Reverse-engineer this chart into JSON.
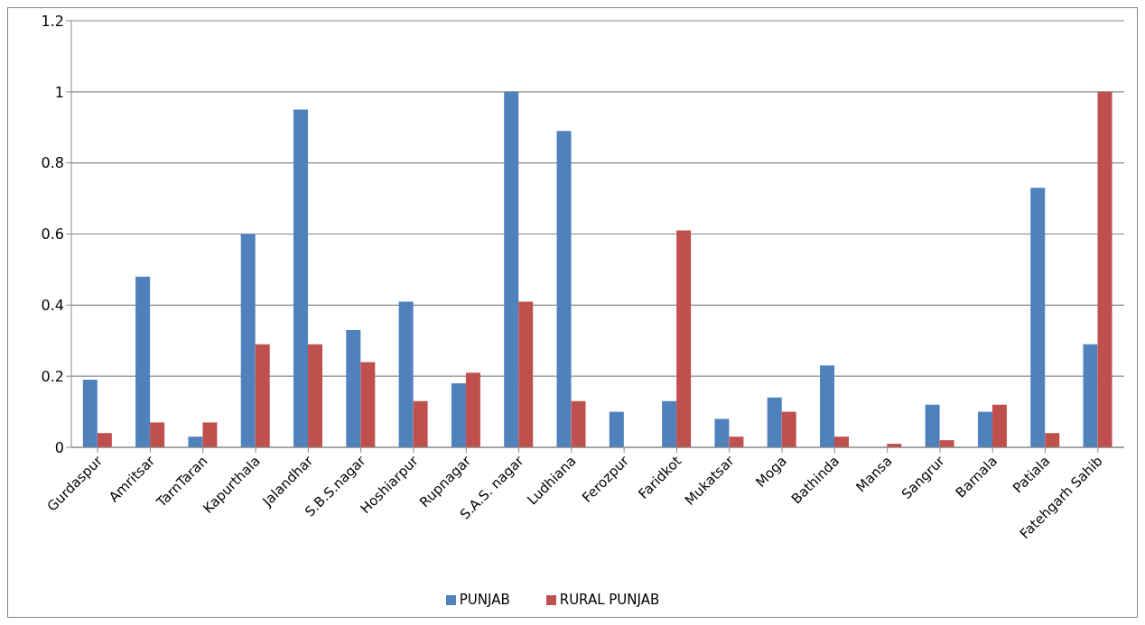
{
  "chart_data": {
    "type": "bar",
    "categories": [
      "Gurdaspur",
      "Amritsar",
      "TarnTaran",
      "Kapurthala",
      "Jalandhar",
      "S.B.S.nagar",
      "Hoshiarpur",
      "Rupnagar",
      "S.A.S. nagar",
      "Ludhiana",
      "Ferozpur",
      "Faridkot",
      "Mukatsar",
      "Moga",
      "Bathinda",
      "Mansa",
      "Sangrur",
      "Barnala",
      "Patiala",
      "Fatehgarh Sahib"
    ],
    "series": [
      {
        "name": "PUNJAB",
        "color": "#4f81bd",
        "values": [
          0.19,
          0.48,
          0.03,
          0.6,
          0.95,
          0.33,
          0.41,
          0.18,
          1.0,
          0.89,
          0.1,
          0.13,
          0.08,
          0.14,
          0.23,
          0,
          0.12,
          0.1,
          0.73,
          0.29
        ]
      },
      {
        "name": "RURAL PUNJAB",
        "color": "#c0504d",
        "values": [
          0.04,
          0.07,
          0.07,
          0.29,
          0.29,
          0.24,
          0.13,
          0.21,
          0.41,
          0.13,
          0,
          0.61,
          0.03,
          0.1,
          0.03,
          0.01,
          0.02,
          0.12,
          0.04,
          1.0
        ]
      }
    ],
    "ylim": [
      0,
      1.2
    ],
    "yticks": [
      0,
      0.2,
      0.4,
      0.6,
      0.8,
      1,
      1.2
    ],
    "grid": "y",
    "legend": "bottom"
  }
}
